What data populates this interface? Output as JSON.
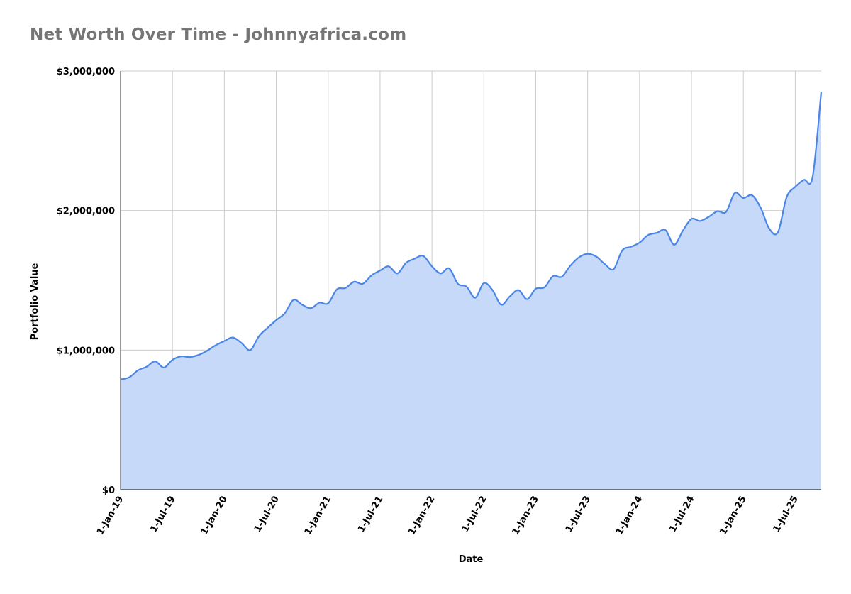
{
  "chart_data": {
    "type": "area",
    "title": "Net Worth Over Time - Johnnyafrica.com",
    "xlabel": "Date",
    "ylabel": "Portfolio Value",
    "ylim": [
      0,
      3000000
    ],
    "y_ticks": [
      {
        "value": 0,
        "label": "$0"
      },
      {
        "value": 1000000,
        "label": "$1,000,000"
      },
      {
        "value": 2000000,
        "label": "$2,000,000"
      },
      {
        "value": 3000000,
        "label": "$3,000,000"
      }
    ],
    "x_ticks": [
      "1-Jan-19",
      "1-Jul-19",
      "1-Jan-20",
      "1-Jul-20",
      "1-Jan-21",
      "1-Jul-21",
      "1-Jan-22",
      "1-Jul-22",
      "1-Jan-23",
      "1-Jul-23",
      "1-Jan-24",
      "1-Jul-24",
      "1-Jan-25",
      "1-Jul-25"
    ],
    "x_range": [
      "1-Jan-19",
      "1-Oct-25"
    ],
    "grid": true,
    "colors": {
      "line": "#4a86e8",
      "fill": "#c6d9f9",
      "grid": "#cccccc",
      "title": "#757575"
    },
    "series": [
      {
        "x": [
          "1-Jan-19",
          "1-Feb-19",
          "1-Mar-19",
          "1-Apr-19",
          "1-May-19",
          "1-Jun-19",
          "1-Jul-19",
          "1-Aug-19",
          "1-Sep-19",
          "1-Oct-19",
          "1-Nov-19",
          "1-Dec-19",
          "1-Jan-20",
          "1-Feb-20",
          "1-Mar-20",
          "1-Apr-20",
          "1-May-20",
          "1-Jun-20",
          "1-Jul-20",
          "1-Aug-20",
          "1-Sep-20",
          "1-Oct-20",
          "1-Nov-20",
          "1-Dec-20",
          "1-Jan-21",
          "1-Feb-21",
          "1-Mar-21",
          "1-Apr-21",
          "1-May-21",
          "1-Jun-21",
          "1-Jul-21",
          "1-Aug-21",
          "1-Sep-21",
          "1-Oct-21",
          "1-Nov-21",
          "1-Dec-21",
          "1-Jan-22",
          "1-Feb-22",
          "1-Mar-22",
          "1-Apr-22",
          "1-May-22",
          "1-Jun-22",
          "1-Jul-22",
          "1-Aug-22",
          "1-Sep-22",
          "1-Oct-22",
          "1-Nov-22",
          "1-Dec-22",
          "1-Jan-23",
          "1-Feb-23",
          "1-Mar-23",
          "1-Apr-23",
          "1-May-23",
          "1-Jun-23",
          "1-Jul-23",
          "1-Aug-23",
          "1-Sep-23",
          "1-Oct-23",
          "1-Nov-23",
          "1-Dec-23",
          "1-Jan-24",
          "1-Feb-24",
          "1-Mar-24",
          "1-Apr-24",
          "1-May-24",
          "1-Jun-24",
          "1-Jul-24",
          "1-Aug-24",
          "1-Sep-24",
          "1-Oct-24",
          "1-Nov-24",
          "1-Dec-24",
          "1-Jan-25",
          "1-Feb-25",
          "1-Mar-25",
          "1-Apr-25",
          "1-May-25",
          "1-Jun-25",
          "1-Jul-25",
          "1-Aug-25",
          "1-Sep-25",
          "1-Oct-25"
        ],
        "values": [
          790000,
          805000,
          855000,
          880000,
          920000,
          875000,
          930000,
          955000,
          950000,
          965000,
          995000,
          1035000,
          1065000,
          1090000,
          1050000,
          1000000,
          1100000,
          1160000,
          1215000,
          1265000,
          1360000,
          1325000,
          1300000,
          1340000,
          1335000,
          1435000,
          1445000,
          1490000,
          1475000,
          1535000,
          1570000,
          1600000,
          1550000,
          1625000,
          1655000,
          1675000,
          1600000,
          1550000,
          1585000,
          1475000,
          1455000,
          1375000,
          1480000,
          1430000,
          1325000,
          1385000,
          1430000,
          1365000,
          1440000,
          1450000,
          1530000,
          1525000,
          1605000,
          1665000,
          1690000,
          1670000,
          1615000,
          1580000,
          1715000,
          1740000,
          1770000,
          1825000,
          1840000,
          1860000,
          1755000,
          1855000,
          1940000,
          1925000,
          1955000,
          1995000,
          1990000,
          2125000,
          2090000,
          2110000,
          2020000,
          1870000,
          1845000,
          2095000,
          2170000,
          2220000,
          2240000,
          2850000
        ]
      }
    ]
  }
}
